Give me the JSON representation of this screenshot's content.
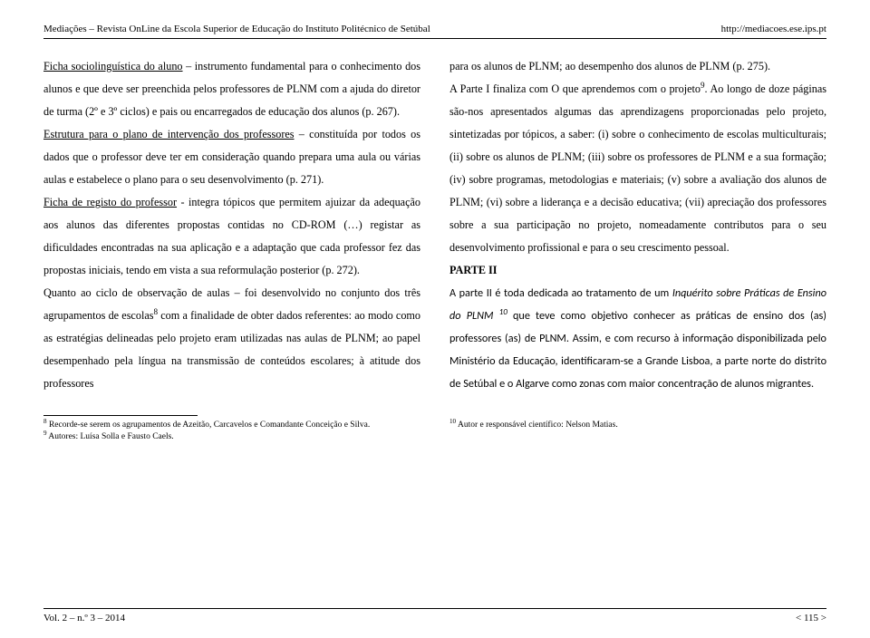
{
  "header": {
    "left": "Mediações – Revista OnLine da Escola Superior de Educação do Instituto Politécnico de Setúbal",
    "right": "http://mediacoes.ese.ips.pt"
  },
  "leftColumn": {
    "p1_pre": "",
    "p1_u": "Ficha sociolinguística do aluno",
    "p1_rest": " – instrumento fundamental para o conhecimento dos alunos e que deve ser preenchida pelos professores de PLNM com a ajuda do diretor de turma (2º e 3º ciclos) e pais ou encarregados de educação dos alunos (p. 267).",
    "p2_u": "Estrutura para o plano de intervenção dos professores",
    "p2_rest": " – constituída por todos os dados que o professor deve ter em consideração quando prepara uma aula ou várias aulas e estabelece o plano para o seu desenvolvimento (p. 271).",
    "p3_u": "Ficha de registo do professor",
    "p3_rest": " - integra tópicos que permitem ajuizar da adequação aos alunos das diferentes propostas contidas no CD-ROM (…) registar as dificuldades encontradas na sua aplicação e a adaptação que cada professor fez das propostas iniciais, tendo em vista a sua reformulação posterior (p. 272).",
    "p4_a": "Quanto ao ciclo de observação de aulas – foi desenvolvido no conjunto dos três agrupamentos de escolas",
    "p4_sup": "8",
    "p4_b": " com a finalidade de obter dados referentes: ao modo como as estratégias delineadas pelo projeto eram utilizadas nas aulas de PLNM; ao papel desempenhado pela língua na transmissão de conteúdos escolares; à atitude dos professores"
  },
  "rightColumn": {
    "p1": "para os alunos de PLNM; ao desempenho dos alunos de PLNM (p. 275).",
    "p2_a": "A Parte I finaliza com O que aprendemos com o projeto",
    "p2_sup": "9",
    "p2_b": ". Ao longo de doze páginas são-nos apresentados algumas das aprendizagens proporcionadas pelo projeto, sintetizadas por tópicos, a saber: (i) sobre o conhecimento de escolas multiculturais; (ii) sobre os alunos de PLNM; (iii) sobre os professores de PLNM e a sua formação; (iv) sobre programas, metodologias e materiais; (v) sobre a avaliação dos alunos de PLNM; (vi) sobre a liderança e a decisão educativa; (vii) apreciação dos professores sobre a sua participação no projeto, nomeadamente contributos para o seu desenvolvimento profissional e para o seu crescimento pessoal.",
    "parte2_heading": "PARTE II",
    "sans_a": "A parte II é toda dedicada ao tratamento de um ",
    "sans_it": "Inquérito sobre Práticas de Ensino do PLNM ",
    "sans_sup": "10",
    "sans_b": "  que teve como objetivo conhecer as práticas de ensino dos (as) professores (as) de PLNM. Assim, e com recurso à informação disponibilizada pelo Ministério da Educação, identificaram-se a Grande Lisboa, a parte norte do distrito de Setúbal e o Algarve como zonas com maior concentração de alunos migrantes."
  },
  "footnotes": {
    "left1_sup": "8",
    "left1": " Recorde-se serem os agrupamentos de Azeitão, Carcavelos e Comandante Conceição e Silva.",
    "left2_sup": "9",
    "left2": " Autores: Luísa Solla e Fausto Caels.",
    "right_sup": "10",
    "right": " Autor e responsável científico: Nelson Matias."
  },
  "footer": {
    "left": "Vol. 2 – n.º 3 – 2014",
    "right": "< 115 >"
  }
}
